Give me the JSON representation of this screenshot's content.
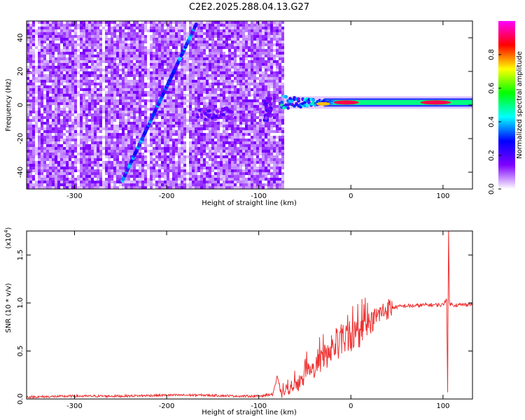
{
  "title": "C2E2.2025.288.04.13.G27",
  "chart_data": [
    {
      "type": "heatmap",
      "title": "C2E2.2025.288.04.13.G27",
      "xlabel": "Height of straight line (km)",
      "ylabel": "Frequency (Hz)",
      "xlim": [
        -352,
        132
      ],
      "ylim": [
        -50,
        50
      ],
      "x_ticks": [
        -300,
        -200,
        -100,
        0,
        100
      ],
      "y_ticks": [
        -40,
        -20,
        0,
        20,
        40
      ],
      "colorbar": {
        "label": "Normalized spectral amplitude",
        "range": [
          0,
          1
        ],
        "ticks": [
          0.0,
          0.2,
          0.4,
          0.6,
          0.8
        ],
        "tick_labels": [
          "0.0",
          "0.2",
          "0.4",
          "0.6",
          "0.8"
        ],
        "colormap": [
          "#ffffff",
          "#7f00ff",
          "#0000ff",
          "#00ffff",
          "#00ff00",
          "#ffff00",
          "#ff0000",
          "#ff00ff"
        ]
      },
      "noise_region": {
        "x_range": [
          -352,
          -75
        ],
        "y_range": [
          -50,
          50
        ],
        "level": 0.12
      },
      "features": [
        {
          "kind": "line",
          "x": [
            -248,
            -168
          ],
          "y": [
            -45,
            48
          ],
          "level": 0.3
        },
        {
          "kind": "blob",
          "x": -148,
          "y": -5,
          "width_km": 40,
          "height_hz": 8,
          "level": 0.15
        },
        {
          "kind": "blob",
          "x": -90,
          "y": -3,
          "width_km": 8,
          "height_hz": 14,
          "level": 0.15
        },
        {
          "kind": "carrier",
          "x_range": [
            -75,
            132
          ],
          "y": 1.5,
          "level": 0.5
        }
      ]
    },
    {
      "type": "line",
      "xlabel": "Height of straight line (km)",
      "ylabel": "SNR (10 * v/v)",
      "yscale_label": "(x10",
      "yscale_exp": "4",
      "xlim": [
        -352,
        132
      ],
      "ylim": [
        0,
        1.75
      ],
      "x_ticks": [
        -300,
        -200,
        -100,
        0,
        100
      ],
      "y_ticks": [
        0.0,
        0.5,
        1.0,
        1.5
      ],
      "y_tick_labels": [
        "0.0",
        "0.5",
        "1.0",
        "1.5"
      ],
      "color": "#ee3333",
      "series": [
        {
          "x": [
            -352,
            -300,
            -250,
            -200,
            -160,
            -120,
            -100,
            -85,
            -80,
            -75,
            -70,
            -60,
            -50,
            -40,
            -30,
            -20,
            -10,
            0,
            10,
            20,
            30,
            40,
            50,
            60,
            70,
            80,
            90,
            100,
            104,
            105,
            106,
            107,
            110,
            120,
            132
          ],
          "y": [
            0.02,
            0.03,
            0.03,
            0.04,
            0.04,
            0.03,
            0.03,
            0.05,
            0.22,
            0.04,
            0.08,
            0.12,
            0.22,
            0.32,
            0.42,
            0.52,
            0.6,
            0.65,
            0.7,
            0.78,
            0.88,
            0.94,
            0.96,
            0.97,
            0.97,
            0.98,
            0.98,
            0.98,
            1.05,
            0.05,
            1.78,
            1.0,
            0.98,
            0.98,
            0.99
          ]
        }
      ]
    }
  ]
}
